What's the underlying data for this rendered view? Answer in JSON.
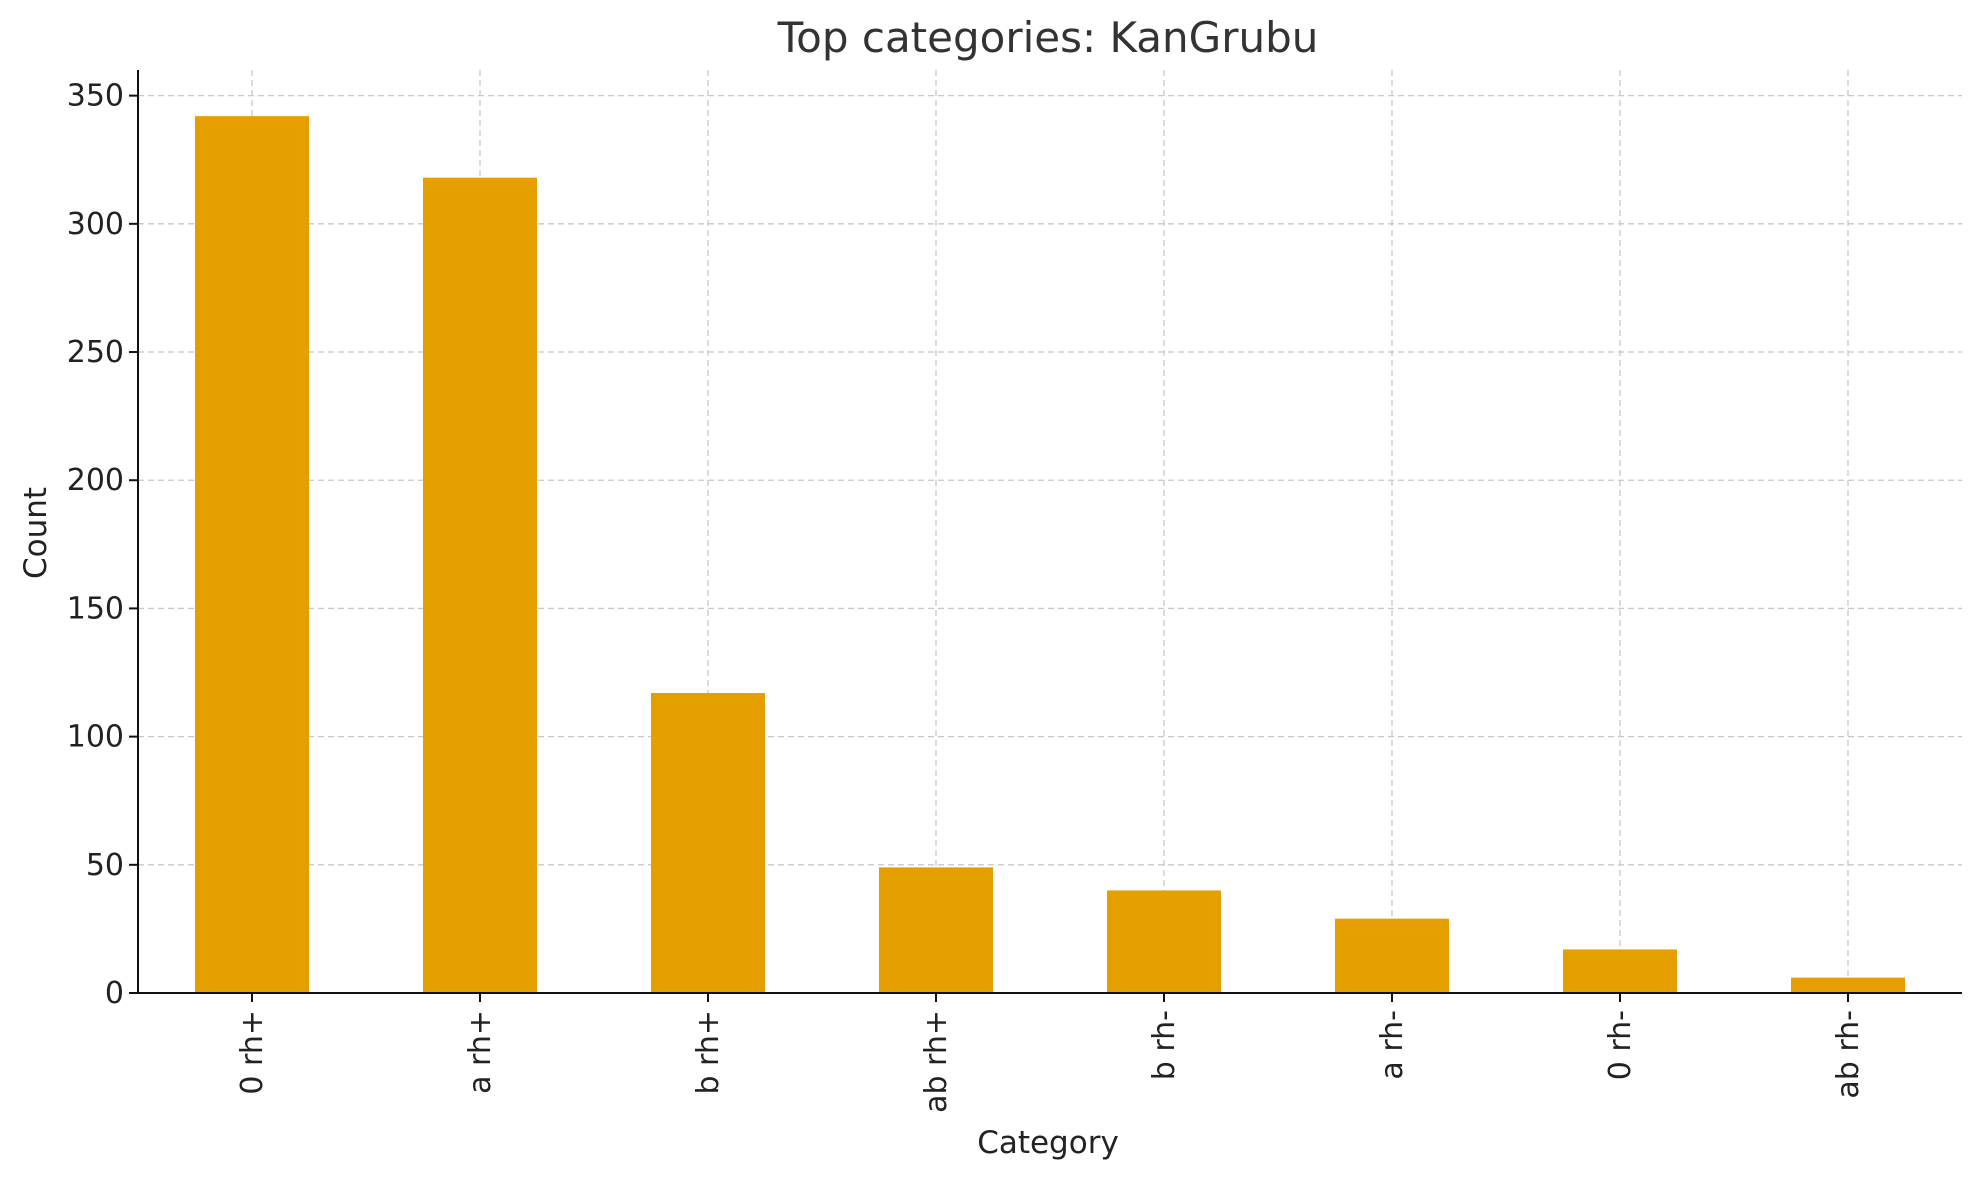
{
  "chart_data": {
    "type": "bar",
    "title": "Top categories: KanGrubu",
    "xlabel": "Category",
    "ylabel": "Count",
    "categories": [
      "0 rh+",
      "a rh+",
      "b rh+",
      "ab rh+",
      "b rh-",
      "a rh-",
      "0 rh-",
      "ab rh-"
    ],
    "values": [
      342,
      318,
      117,
      49,
      40,
      29,
      17,
      6
    ],
    "ylim": [
      0,
      360
    ],
    "yticks": [
      0,
      50,
      100,
      150,
      200,
      250,
      300,
      350
    ],
    "grid": true,
    "legend": "none",
    "bar_color": "#E5A000"
  }
}
